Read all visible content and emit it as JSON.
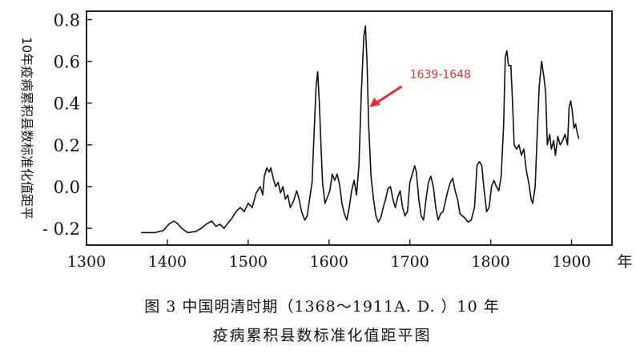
{
  "chart_data": {
    "type": "line",
    "title": "",
    "xlabel": "年",
    "ylabel": "10年疫病累积县数标准化值距平",
    "xlim": [
      1300,
      1950
    ],
    "ylim": [
      -0.28,
      0.84
    ],
    "x_ticks": [
      1300,
      1400,
      1500,
      1600,
      1700,
      1800,
      1900
    ],
    "y_ticks": [
      0.8,
      0.6,
      0.4,
      0.2,
      0.0,
      -0.2
    ],
    "y_tick_labels": [
      "0.8",
      "0.6",
      "0.4",
      "0.2",
      "0.0",
      "- 0.2"
    ],
    "grid": false,
    "annotation": {
      "text": "1639-1648",
      "x": 1644,
      "y": 0.76,
      "color": "#e03030"
    },
    "series": [
      {
        "values": [
          [
            1368,
            -0.22
          ],
          [
            1385,
            -0.22
          ],
          [
            1395,
            -0.21
          ],
          [
            1402,
            -0.18
          ],
          [
            1408,
            -0.165
          ],
          [
            1412,
            -0.175
          ],
          [
            1418,
            -0.2
          ],
          [
            1425,
            -0.22
          ],
          [
            1435,
            -0.215
          ],
          [
            1442,
            -0.2
          ],
          [
            1448,
            -0.18
          ],
          [
            1455,
            -0.165
          ],
          [
            1460,
            -0.19
          ],
          [
            1465,
            -0.18
          ],
          [
            1470,
            -0.2
          ],
          [
            1476,
            -0.17
          ],
          [
            1480,
            -0.15
          ],
          [
            1485,
            -0.12
          ],
          [
            1490,
            -0.1
          ],
          [
            1495,
            -0.12
          ],
          [
            1500,
            -0.08
          ],
          [
            1505,
            -0.1
          ],
          [
            1510,
            -0.03
          ],
          [
            1515,
            0.0
          ],
          [
            1518,
            -0.04
          ],
          [
            1520,
            0.05
          ],
          [
            1523,
            0.09
          ],
          [
            1526,
            0.07
          ],
          [
            1528,
            0.09
          ],
          [
            1531,
            0.04
          ],
          [
            1534,
            0.0
          ],
          [
            1537,
            0.02
          ],
          [
            1540,
            -0.03
          ],
          [
            1543,
            0.0
          ],
          [
            1546,
            -0.06
          ],
          [
            1549,
            -0.04
          ],
          [
            1552,
            -0.1
          ],
          [
            1556,
            -0.07
          ],
          [
            1560,
            -0.02
          ],
          [
            1563,
            -0.06
          ],
          [
            1566,
            -0.12
          ],
          [
            1570,
            -0.16
          ],
          [
            1573,
            -0.14
          ],
          [
            1576,
            -0.06
          ],
          [
            1579,
            0.02
          ],
          [
            1582,
            0.3
          ],
          [
            1584,
            0.48
          ],
          [
            1586,
            0.55
          ],
          [
            1588,
            0.4
          ],
          [
            1590,
            0.2
          ],
          [
            1592,
            0.02
          ],
          [
            1595,
            -0.08
          ],
          [
            1598,
            -0.05
          ],
          [
            1601,
            -0.02
          ],
          [
            1604,
            0.06
          ],
          [
            1607,
            0.03
          ],
          [
            1610,
            0.06
          ],
          [
            1613,
            0.01
          ],
          [
            1616,
            -0.08
          ],
          [
            1619,
            -0.13
          ],
          [
            1622,
            -0.16
          ],
          [
            1625,
            -0.1
          ],
          [
            1628,
            -0.02
          ],
          [
            1631,
            0.03
          ],
          [
            1634,
            -0.04
          ],
          [
            1637,
            0.1
          ],
          [
            1640,
            0.45
          ],
          [
            1643,
            0.72
          ],
          [
            1645,
            0.77
          ],
          [
            1647,
            0.6
          ],
          [
            1649,
            0.3
          ],
          [
            1652,
            0.05
          ],
          [
            1655,
            -0.06
          ],
          [
            1658,
            -0.14
          ],
          [
            1661,
            -0.17
          ],
          [
            1664,
            -0.15
          ],
          [
            1667,
            -0.1
          ],
          [
            1670,
            -0.06
          ],
          [
            1673,
            -0.01
          ],
          [
            1676,
            0.0
          ],
          [
            1679,
            -0.06
          ],
          [
            1682,
            -0.1
          ],
          [
            1685,
            -0.05
          ],
          [
            1688,
            -0.02
          ],
          [
            1691,
            -0.1
          ],
          [
            1694,
            -0.14
          ],
          [
            1697,
            -0.12
          ],
          [
            1700,
            0.02
          ],
          [
            1703,
            0.06
          ],
          [
            1706,
            0.1
          ],
          [
            1708,
            0.07
          ],
          [
            1711,
            -0.06
          ],
          [
            1714,
            -0.14
          ],
          [
            1717,
            -0.16
          ],
          [
            1720,
            -0.06
          ],
          [
            1723,
            0.02
          ],
          [
            1726,
            0.05
          ],
          [
            1729,
            0.0
          ],
          [
            1732,
            -0.1
          ],
          [
            1735,
            -0.16
          ],
          [
            1738,
            -0.13
          ],
          [
            1741,
            -0.12
          ],
          [
            1744,
            -0.07
          ],
          [
            1747,
            -0.02
          ],
          [
            1750,
            0.02
          ],
          [
            1753,
            0.04
          ],
          [
            1756,
            -0.02
          ],
          [
            1759,
            -0.06
          ],
          [
            1762,
            -0.13
          ],
          [
            1765,
            -0.14
          ],
          [
            1768,
            -0.15
          ],
          [
            1772,
            -0.17
          ],
          [
            1776,
            -0.16
          ],
          [
            1780,
            -0.1
          ],
          [
            1783,
            0.1
          ],
          [
            1786,
            0.12
          ],
          [
            1789,
            0.1
          ],
          [
            1792,
            -0.02
          ],
          [
            1795,
            -0.12
          ],
          [
            1798,
            -0.1
          ],
          [
            1801,
            0.0
          ],
          [
            1804,
            0.03
          ],
          [
            1807,
            0.0
          ],
          [
            1810,
            -0.02
          ],
          [
            1813,
            0.05
          ],
          [
            1816,
            0.3
          ],
          [
            1818,
            0.62
          ],
          [
            1820,
            0.65
          ],
          [
            1822,
            0.58
          ],
          [
            1825,
            0.58
          ],
          [
            1827,
            0.4
          ],
          [
            1829,
            0.2
          ],
          [
            1832,
            0.18
          ],
          [
            1835,
            0.2
          ],
          [
            1838,
            0.15
          ],
          [
            1841,
            0.18
          ],
          [
            1844,
            0.08
          ],
          [
            1847,
            0.02
          ],
          [
            1850,
            -0.06
          ],
          [
            1852,
            -0.08
          ],
          [
            1855,
            0.0
          ],
          [
            1858,
            0.3
          ],
          [
            1860,
            0.48
          ],
          [
            1863,
            0.6
          ],
          [
            1866,
            0.52
          ],
          [
            1868,
            0.45
          ],
          [
            1870,
            0.2
          ],
          [
            1873,
            0.25
          ],
          [
            1875,
            0.18
          ],
          [
            1878,
            0.22
          ],
          [
            1880,
            0.15
          ],
          [
            1883,
            0.24
          ],
          [
            1886,
            0.2
          ],
          [
            1889,
            0.22
          ],
          [
            1892,
            0.25
          ],
          [
            1895,
            0.2
          ],
          [
            1897,
            0.38
          ],
          [
            1899,
            0.41
          ],
          [
            1901,
            0.36
          ],
          [
            1903,
            0.28
          ],
          [
            1905,
            0.3
          ],
          [
            1907,
            0.26
          ],
          [
            1909,
            0.23
          ]
        ]
      }
    ]
  },
  "caption": {
    "line1": "图 3  中国明清时期（1368～1911A. D. ）10 年",
    "line2": "疫病累积县数标准化值距平图"
  }
}
